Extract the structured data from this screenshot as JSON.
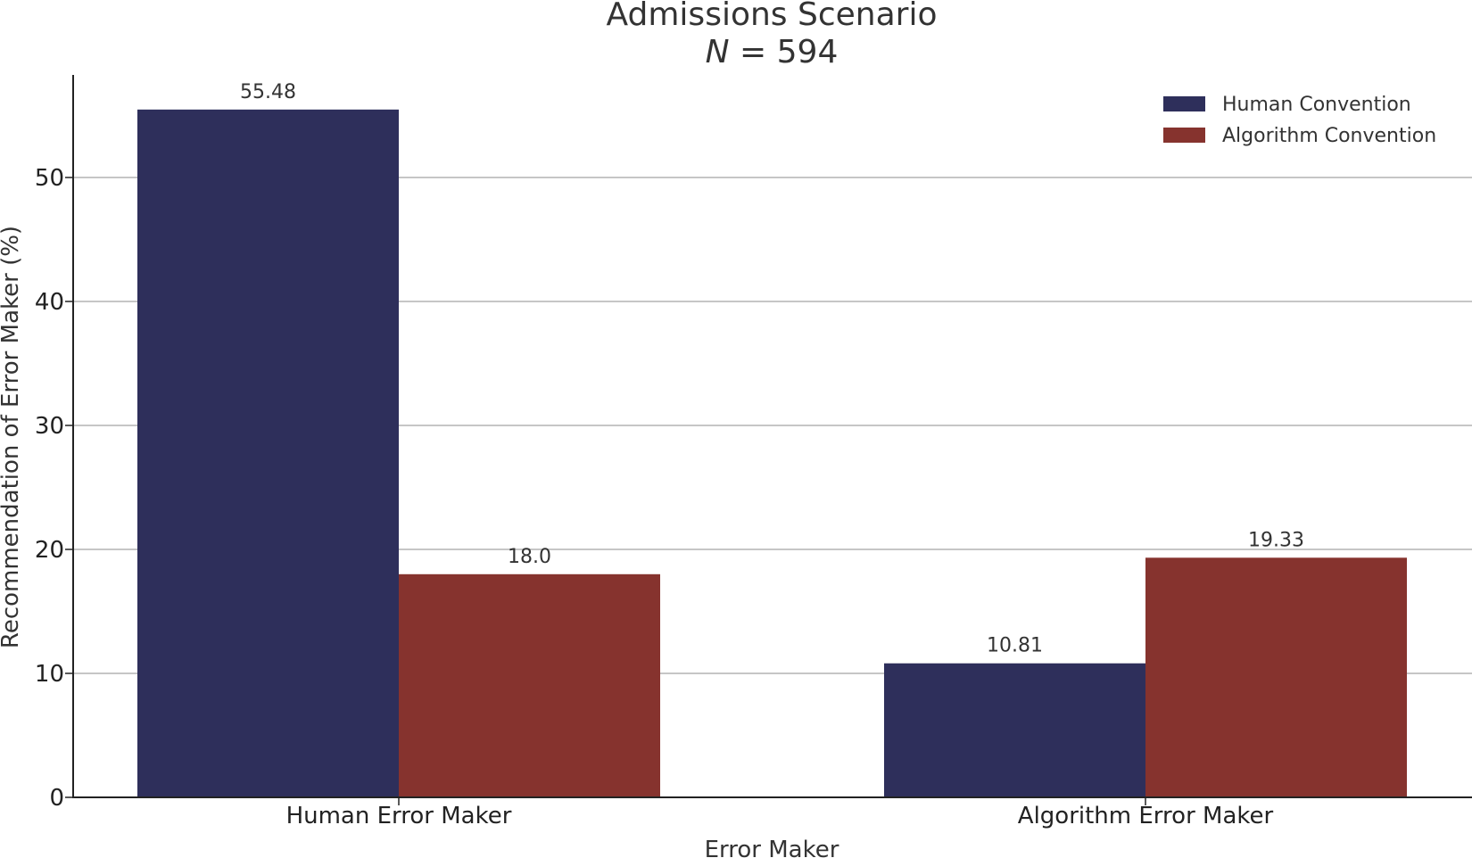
{
  "chart_data": {
    "type": "bar",
    "title": "Admissions Scenario",
    "subtitle": {
      "var": "N",
      "rest": " = 594"
    },
    "xlabel": "Error Maker",
    "ylabel": "Recommendation of Error Maker (%)",
    "categories": [
      "Human Error Maker",
      "Algorithm Error Maker"
    ],
    "series": [
      {
        "name": "Human Convention",
        "values": [
          55.48,
          10.81
        ],
        "labels": [
          "55.48",
          "10.81"
        ],
        "color": "#2e2f5b"
      },
      {
        "name": "Algorithm Convention",
        "values": [
          18.0,
          19.33
        ],
        "labels": [
          "18.0",
          "19.33"
        ],
        "color": "#86332e"
      }
    ],
    "ylim": [
      0,
      58
    ],
    "yticks": [
      0,
      10,
      20,
      30,
      40,
      50
    ],
    "grid": true,
    "legend": "top-right"
  }
}
